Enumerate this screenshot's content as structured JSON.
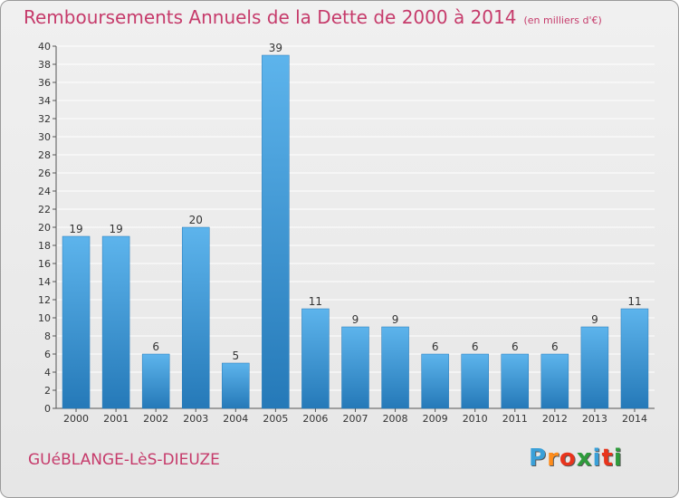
{
  "header": {
    "title": "Remboursements Annuels de la Dette de 2000 à 2014",
    "subtitle": "(en milliers d'€)"
  },
  "footer": {
    "place": "GUéBLANGE-LèS-DIEUZE",
    "logo_text": "Proxiti",
    "logo_colors": [
      "#3aa0d8",
      "#ff8c1a",
      "#e8341c",
      "#2e9b3b",
      "#3aa0d8",
      "#e8341c",
      "#2e9b3b"
    ]
  },
  "colors": {
    "bar_top": "#5db4ec",
    "bar_bottom": "#2579b8",
    "text": "#333333",
    "brand": "#c63b6b"
  },
  "chart_data": {
    "type": "bar",
    "categories": [
      "2000",
      "2001",
      "2002",
      "2003",
      "2004",
      "2005",
      "2006",
      "2007",
      "2008",
      "2009",
      "2010",
      "2011",
      "2012",
      "2013",
      "2014"
    ],
    "values": [
      19,
      19,
      6,
      20,
      5,
      39,
      11,
      9,
      9,
      6,
      6,
      6,
      6,
      9,
      11
    ],
    "title": "Remboursements Annuels de la Dette de 2000 à 2014",
    "subtitle": "(en milliers d'€)",
    "xlabel": "",
    "ylabel": "",
    "ylim": [
      0,
      40
    ],
    "yticks": [
      0,
      2,
      4,
      6,
      8,
      10,
      12,
      14,
      16,
      18,
      20,
      22,
      24,
      26,
      28,
      30,
      32,
      34,
      36,
      38,
      40
    ],
    "grid": true,
    "legend": "none",
    "data_labels": true
  }
}
